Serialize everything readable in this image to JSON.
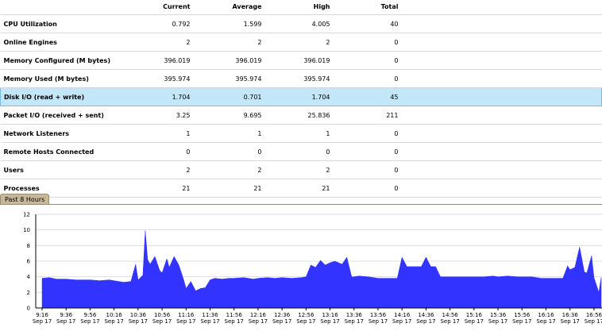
{
  "table": {
    "headers": [
      "",
      "Current",
      "Average",
      "High",
      "Total"
    ],
    "rows": [
      {
        "label": "CPU Utilization",
        "current": "0.792",
        "average": "1.599",
        "high": "4.005",
        "total": "40"
      },
      {
        "label": "Online Engines",
        "current": "2",
        "average": "2",
        "high": "2",
        "total": "0"
      },
      {
        "label": "Memory Configured (M bytes)",
        "current": "396.019",
        "average": "396.019",
        "high": "396.019",
        "total": "0"
      },
      {
        "label": "Memory Used (M bytes)",
        "current": "395.974",
        "average": "395.974",
        "high": "395.974",
        "total": "0"
      },
      {
        "label": "Disk I/O (read + write)",
        "current": "1.704",
        "average": "0.701",
        "high": "1.704",
        "total": "45",
        "selected": true
      },
      {
        "label": "Packet I/O (received + sent)",
        "current": "3.25",
        "average": "9.695",
        "high": "25.836",
        "total": "211"
      },
      {
        "label": "Network Listeners",
        "current": "1",
        "average": "1",
        "high": "1",
        "total": "0"
      },
      {
        "label": "Remote Hosts Connected",
        "current": "0",
        "average": "0",
        "high": "0",
        "total": "0"
      },
      {
        "label": "Users",
        "current": "2",
        "average": "2",
        "high": "2",
        "total": "0"
      },
      {
        "label": "Processes",
        "current": "21",
        "average": "21",
        "high": "21",
        "total": "0"
      }
    ]
  },
  "tab": {
    "label": "Past 8 Hours"
  },
  "chart_data": {
    "type": "area",
    "title": "",
    "xlabel": "",
    "ylabel": "",
    "ylim": [
      0,
      12
    ],
    "y_ticks": [
      "0",
      "2",
      "4",
      "6",
      "8",
      "10",
      "12"
    ],
    "grid": true,
    "fill_color": "#3333ff",
    "x_ticks": [
      {
        "time": "9:16",
        "date": "Sep 17"
      },
      {
        "time": "9:36",
        "date": "Sep 17"
      },
      {
        "time": "9:56",
        "date": "Sep 17"
      },
      {
        "time": "10:16",
        "date": "Sep 17"
      },
      {
        "time": "10:36",
        "date": "Sep 17"
      },
      {
        "time": "10:56",
        "date": "Sep 17"
      },
      {
        "time": "11:16",
        "date": "Sep 17"
      },
      {
        "time": "11:36",
        "date": "Sep 17"
      },
      {
        "time": "11:56",
        "date": "Sep 17"
      },
      {
        "time": "12:16",
        "date": "Sep 17"
      },
      {
        "time": "12:36",
        "date": "Sep 17"
      },
      {
        "time": "12:56",
        "date": "Sep 17"
      },
      {
        "time": "13:16",
        "date": "Sep 17"
      },
      {
        "time": "13:36",
        "date": "Sep 17"
      },
      {
        "time": "13:56",
        "date": "Sep 17"
      },
      {
        "time": "14:16",
        "date": "Sep 17"
      },
      {
        "time": "14:36",
        "date": "Sep 17"
      },
      {
        "time": "14:56",
        "date": "Sep 17"
      },
      {
        "time": "15:16",
        "date": "Sep 17"
      },
      {
        "time": "15:36",
        "date": "Sep 17"
      },
      {
        "time": "15:56",
        "date": "Sep 17"
      },
      {
        "time": "16:16",
        "date": "Sep 17"
      },
      {
        "time": "16:36",
        "date": "Sep 17"
      },
      {
        "time": "16:56",
        "date": "Sep 17"
      }
    ],
    "x": [
      "9:16",
      "9:22",
      "9:28",
      "9:36",
      "9:44",
      "9:52",
      "9:56",
      "10:04",
      "10:12",
      "10:16",
      "10:24",
      "10:30",
      "10:34",
      "10:36",
      "10:40",
      "10:42",
      "10:44",
      "10:46",
      "10:50",
      "10:54",
      "10:56",
      "11:00",
      "11:02",
      "11:06",
      "11:10",
      "11:14",
      "11:16",
      "11:20",
      "11:24",
      "11:28",
      "11:32",
      "11:36",
      "11:40",
      "11:46",
      "11:52",
      "11:56",
      "12:04",
      "12:12",
      "12:16",
      "12:24",
      "12:30",
      "12:36",
      "12:44",
      "12:52",
      "12:56",
      "13:00",
      "13:04",
      "13:08",
      "13:12",
      "13:16",
      "13:20",
      "13:26",
      "13:30",
      "13:34",
      "13:36",
      "13:40",
      "13:48",
      "13:56",
      "14:04",
      "14:12",
      "14:16",
      "14:20",
      "14:24",
      "14:32",
      "14:36",
      "14:40",
      "14:44",
      "14:48",
      "14:56",
      "15:04",
      "15:12",
      "15:16",
      "15:24",
      "15:32",
      "15:36",
      "15:44",
      "15:52",
      "15:56",
      "16:04",
      "16:12",
      "16:16",
      "16:24",
      "16:30",
      "16:34",
      "16:36",
      "16:40",
      "16:44",
      "16:48",
      "16:50",
      "16:54",
      "16:56",
      "17:00",
      "17:02"
    ],
    "series": [
      {
        "values": [
          3.8,
          3.9,
          3.7,
          3.7,
          3.6,
          3.6,
          3.6,
          3.5,
          3.6,
          3.5,
          3.3,
          3.4,
          5.6,
          3.6,
          4.2,
          9.9,
          6.2,
          5.6,
          6.6,
          4.8,
          4.5,
          6.3,
          5.2,
          6.6,
          5.5,
          3.6,
          2.5,
          3.4,
          2.2,
          2.5,
          2.6,
          3.6,
          3.8,
          3.7,
          3.8,
          3.8,
          3.9,
          3.7,
          3.8,
          3.9,
          3.8,
          3.9,
          3.8,
          3.9,
          4.0,
          5.5,
          5.2,
          6.1,
          5.5,
          5.8,
          6.0,
          5.6,
          6.5,
          4.0,
          4.0,
          4.1,
          4.0,
          3.8,
          3.8,
          3.8,
          6.5,
          5.3,
          5.3,
          5.3,
          6.5,
          5.3,
          5.3,
          4.0,
          4.0,
          4.0,
          4.0,
          4.0,
          4.0,
          4.1,
          4.0,
          4.1,
          4.0,
          4.0,
          4.0,
          3.8,
          3.8,
          3.8,
          3.8,
          5.4,
          4.9,
          5.2,
          7.8,
          4.6,
          4.5,
          6.7,
          3.9,
          2.0,
          3.9
        ]
      }
    ]
  }
}
